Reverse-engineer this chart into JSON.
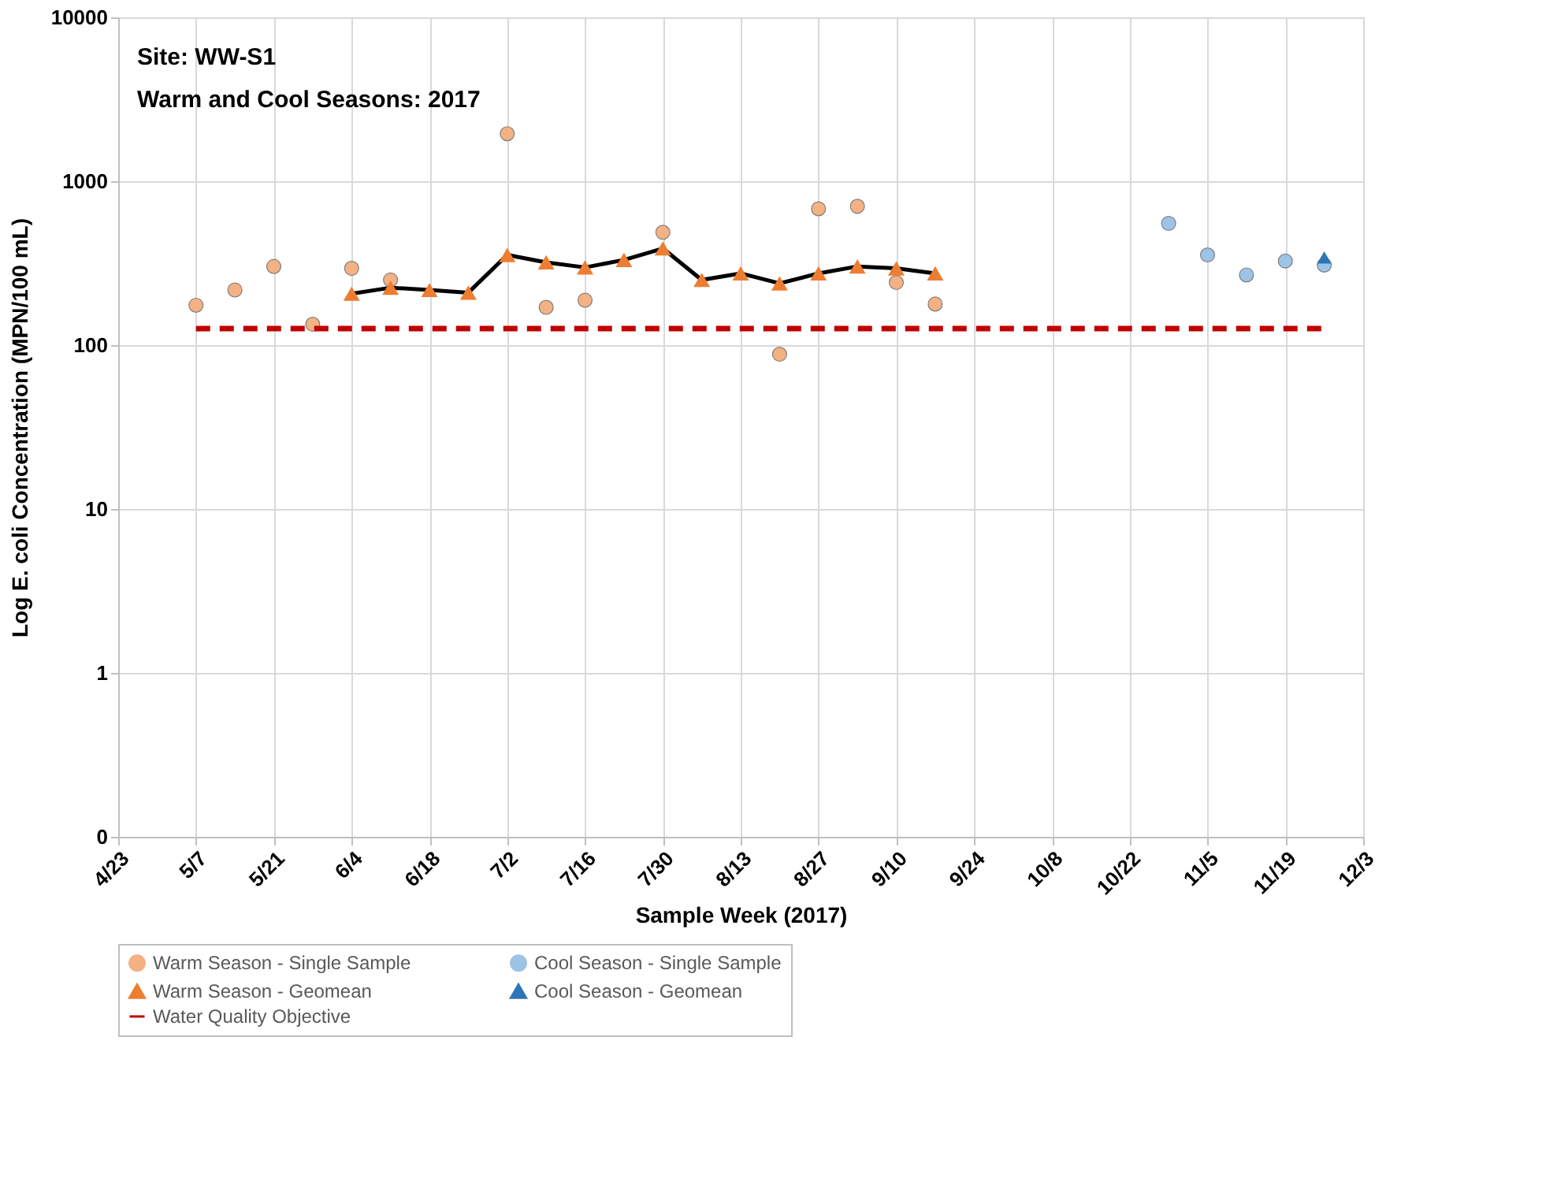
{
  "chart_data": {
    "type": "scatter",
    "xlabel": "Sample Week (2017)",
    "ylabel": "Log E. coli Concentration (MPN/100 mL)",
    "annotations": [
      "Site: WW-S1",
      "Warm and Cool Seasons: 2017"
    ],
    "log": "y",
    "grid": true,
    "legend": "bottom",
    "xlim": [
      "2017-04-23",
      "2017-12-03"
    ],
    "xticks": [
      {
        "value": "2017-04-23",
        "label": "4/23"
      },
      {
        "value": "2017-05-07",
        "label": "5/7"
      },
      {
        "value": "2017-05-21",
        "label": "5/21"
      },
      {
        "value": "2017-06-04",
        "label": "6/4"
      },
      {
        "value": "2017-06-18",
        "label": "6/18"
      },
      {
        "value": "2017-07-02",
        "label": "7/2"
      },
      {
        "value": "2017-07-16",
        "label": "7/16"
      },
      {
        "value": "2017-07-30",
        "label": "7/30"
      },
      {
        "value": "2017-08-13",
        "label": "8/13"
      },
      {
        "value": "2017-08-27",
        "label": "8/27"
      },
      {
        "value": "2017-09-10",
        "label": "9/10"
      },
      {
        "value": "2017-09-24",
        "label": "9/24"
      },
      {
        "value": "2017-10-08",
        "label": "10/8"
      },
      {
        "value": "2017-10-22",
        "label": "10/22"
      },
      {
        "value": "2017-11-05",
        "label": "11/5"
      },
      {
        "value": "2017-11-19",
        "label": "11/19"
      },
      {
        "value": "2017-12-03",
        "label": "12/3"
      }
    ],
    "ylim": [
      0.1,
      10000
    ],
    "yticks": [
      {
        "value": 0.1,
        "label": "0"
      },
      1,
      10,
      100,
      1000,
      10000
    ],
    "series": [
      {
        "name": "Warm Season - Single Sample",
        "type": "scatter",
        "marker": "circle",
        "color": "#f4b183",
        "x": [
          "2017-05-07",
          "2017-05-14",
          "2017-05-21",
          "2017-05-28",
          "2017-06-04",
          "2017-06-11",
          "2017-07-02",
          "2017-07-09",
          "2017-07-16",
          "2017-07-30",
          "2017-08-20",
          "2017-08-27",
          "2017-09-03",
          "2017-09-10",
          "2017-09-17"
        ],
        "values": [
          175,
          217,
          302,
          134,
          294,
          250,
          1950,
          170,
          188,
          488,
          88,
          679,
          703,
          241,
          178
        ]
      },
      {
        "name": "Cool Season - Single Sample",
        "type": "scatter",
        "marker": "circle",
        "color": "#9dc3e6",
        "x": [
          "2017-10-29",
          "2017-11-05",
          "2017-11-12",
          "2017-11-19",
          "2017-11-26"
        ],
        "values": [
          553,
          355,
          268,
          326,
          308
        ]
      },
      {
        "name": "Warm Season - Geomean",
        "type": "line",
        "marker": "triangle",
        "line_style": "solid",
        "color": "#ed7d31",
        "x": [
          "2017-06-04",
          "2017-06-11",
          "2017-06-18",
          "2017-06-25",
          "2017-07-02",
          "2017-07-09",
          "2017-07-16",
          "2017-07-23",
          "2017-07-30",
          "2017-08-06",
          "2017-08-13",
          "2017-08-20",
          "2017-08-27",
          "2017-09-03",
          "2017-09-10",
          "2017-09-17"
        ],
        "values": [
          206,
          224,
          217,
          209,
          355,
          320,
          298,
          331,
          389,
          250,
          274,
          238,
          274,
          302,
          294,
          274
        ]
      },
      {
        "name": "Cool Season - Geomean",
        "type": "scatter",
        "marker": "triangle",
        "color": "#2e75b6",
        "x": [
          "2017-11-26"
        ],
        "values": [
          343
        ]
      },
      {
        "name": "Water Quality Objective",
        "type": "line",
        "marker": "none",
        "line_style": "dashed",
        "color": "#c00000",
        "x": [
          "2017-05-07",
          "2017-11-26"
        ],
        "values": [
          126,
          126
        ]
      }
    ]
  }
}
